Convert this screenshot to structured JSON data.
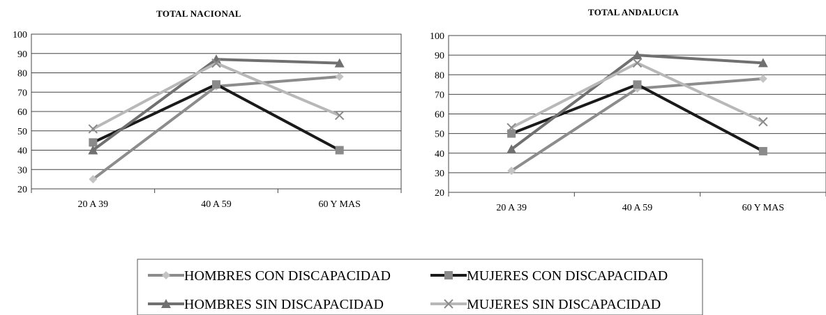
{
  "chart_data": [
    {
      "type": "line",
      "title": "TOTAL NACIONAL",
      "categories": [
        "20 A 39",
        "40 A 59",
        "60 Y MAS"
      ],
      "ylim": [
        20,
        100
      ],
      "yticks": [
        "20",
        "30",
        "40",
        "50",
        "60",
        "70",
        "80",
        "90",
        "100"
      ],
      "grid": true,
      "series": [
        {
          "name": "HOMBRES CON DISCAPACIDAD",
          "values": [
            25,
            73,
            78
          ]
        },
        {
          "name": "MUJERES CON DISCAPACIDAD",
          "values": [
            44,
            74,
            40
          ]
        },
        {
          "name": "HOMBRES SIN DISCAPACIDAD",
          "values": [
            40,
            87,
            85
          ]
        },
        {
          "name": "MUJERES SIN DISCAPACIDAD",
          "values": [
            51,
            85,
            58
          ]
        }
      ]
    },
    {
      "type": "line",
      "title": "TOTAL ANDALUCIA",
      "categories": [
        "20 A 39",
        "40 A 59",
        "60 Y MAS"
      ],
      "ylim": [
        20,
        100
      ],
      "yticks": [
        "20",
        "30",
        "40",
        "50",
        "60",
        "70",
        "80",
        "90",
        "100"
      ],
      "grid": true,
      "series": [
        {
          "name": "HOMBRES CON DISCAPACIDAD",
          "values": [
            31,
            73,
            78
          ]
        },
        {
          "name": "MUJERES CON DISCAPACIDAD",
          "values": [
            50,
            75,
            41
          ]
        },
        {
          "name": "HOMBRES SIN DISCAPACIDAD",
          "values": [
            42,
            90,
            86
          ]
        },
        {
          "name": "MUJERES SIN DISCAPACIDAD",
          "values": [
            53,
            86,
            56
          ]
        }
      ]
    }
  ],
  "legend": {
    "placement": "bottom-center",
    "items": [
      {
        "label": "HOMBRES CON DISCAPACIDAD",
        "color": "#8c8c8c",
        "marker": "diamond"
      },
      {
        "label": "MUJERES CON DISCAPACIDAD",
        "color": "#1a1a1a",
        "marker": "square"
      },
      {
        "label": "HOMBRES SIN DISCAPACIDAD",
        "color": "#707070",
        "marker": "triangle"
      },
      {
        "label": "MUJERES SIN DISCAPACIDAD",
        "color": "#b8b8b8",
        "marker": "x"
      }
    ]
  },
  "styles": {
    "series_colors": [
      "#8c8c8c",
      "#1a1a1a",
      "#707070",
      "#b8b8b8"
    ],
    "marker_colors": [
      "#c4c4c4",
      "#8a8a8a",
      "#707070",
      "#8a8a8a"
    ],
    "markers": [
      "diamond",
      "square",
      "triangle",
      "x"
    ]
  }
}
